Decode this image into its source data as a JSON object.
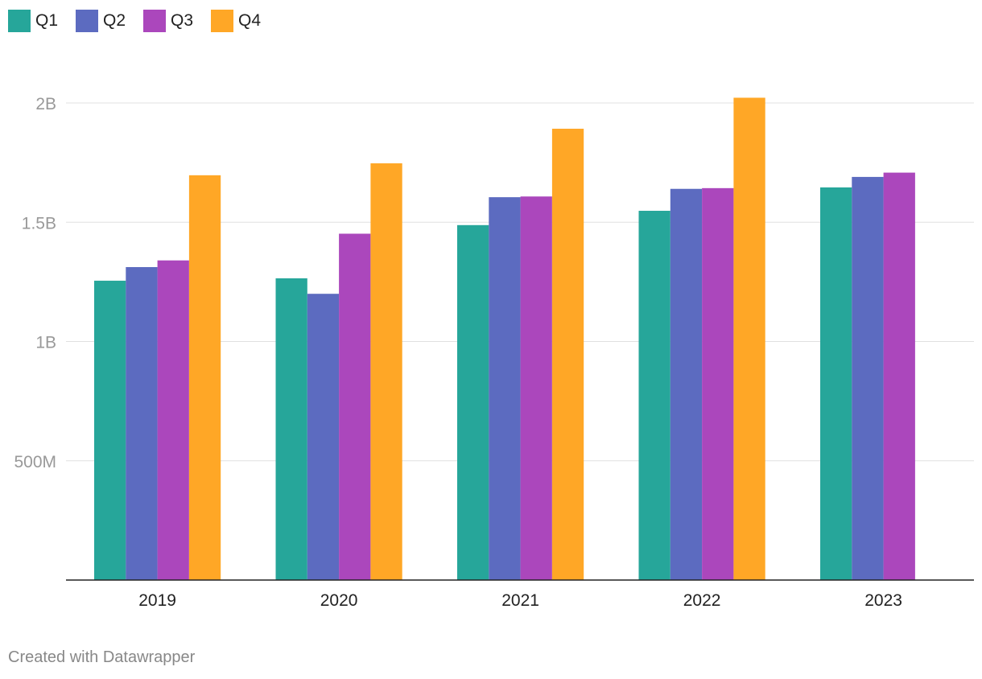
{
  "chart_data": {
    "type": "bar",
    "categories": [
      "2019",
      "2020",
      "2021",
      "2022",
      "2023"
    ],
    "series": [
      {
        "name": "Q1",
        "color": "#26a69a",
        "values": [
          1.255,
          1.265,
          1.488,
          1.548,
          1.646
        ]
      },
      {
        "name": "Q2",
        "color": "#5c6bc0",
        "values": [
          1.312,
          1.2,
          1.605,
          1.64,
          1.69
        ]
      },
      {
        "name": "Q3",
        "color": "#ab47bc",
        "values": [
          1.34,
          1.452,
          1.608,
          1.643,
          1.708
        ]
      },
      {
        "name": "Q4",
        "color": "#ffa726",
        "values": [
          1.697,
          1.747,
          1.892,
          2.022,
          null
        ]
      }
    ],
    "yticks": [
      {
        "value": 0.5,
        "label": "500M"
      },
      {
        "value": 1.0,
        "label": "1B"
      },
      {
        "value": 1.5,
        "label": "1.5B"
      },
      {
        "value": 2.0,
        "label": "2B"
      }
    ],
    "ylim": [
      0,
      2.0
    ],
    "units": "billions",
    "legend_position": "top-left",
    "grid": true
  },
  "footer": {
    "credit": "Created with Datawrapper"
  }
}
